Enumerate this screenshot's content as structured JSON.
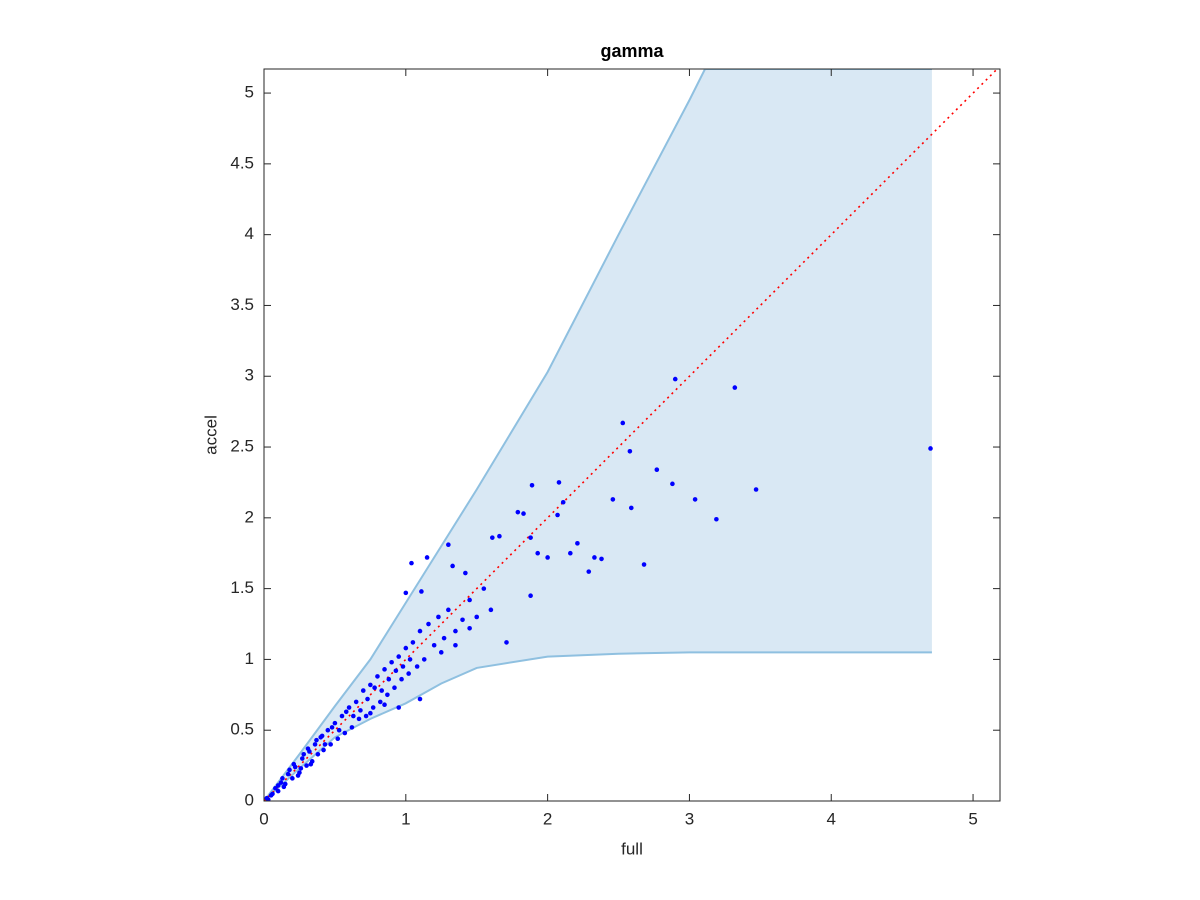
{
  "chart_data": {
    "type": "scatter",
    "title": "gamma",
    "x_label": "full",
    "y_label": "accel",
    "xlim": [
      0,
      5.19
    ],
    "ylim": [
      0,
      5.17
    ],
    "xticks": [
      0,
      1,
      2,
      3,
      4,
      5
    ],
    "yticks": [
      0,
      0.5,
      1,
      1.5,
      2,
      2.5,
      3,
      3.5,
      4,
      4.5,
      5
    ],
    "band": {
      "fill": "#d9e8f4",
      "edge": "#8fc0e0",
      "x": [
        0,
        0.25,
        0.5,
        0.75,
        1,
        1.25,
        1.5,
        2,
        2.5,
        3,
        3.11,
        4.71
      ],
      "upper": [
        0,
        0.33,
        0.67,
        1.0,
        1.4,
        1.8,
        2.2,
        3.03,
        4.0,
        4.95,
        5.17,
        5.17
      ],
      "lower": [
        0,
        0.23,
        0.45,
        0.58,
        0.69,
        0.83,
        0.94,
        1.02,
        1.04,
        1.05,
        1.05,
        1.05
      ]
    },
    "reference_line": {
      "color": "#ff0000",
      "x": [
        0,
        5.17
      ],
      "y": [
        0,
        5.17
      ]
    },
    "points": {
      "color": "#0000ff",
      "x": [
        4.7,
        3.32,
        2.9,
        3.47,
        3.19,
        3.04,
        2.88,
        2.77,
        2.53,
        2.58,
        2.59,
        2.68,
        2.46,
        2.33,
        2.29,
        2.38,
        2.21,
        2.16,
        2.11,
        2.08,
        2.07,
        1.89,
        1.79,
        1.83,
        1.88,
        1.93,
        1.88,
        2.0,
        1.71,
        1.61,
        1.66,
        1.04,
        1.15,
        1.3,
        1.33,
        1.42,
        1.0,
        1.11,
        0.02,
        0.05,
        0.08,
        0.1,
        0.12,
        0.15,
        0.17,
        0.2,
        0.22,
        0.25,
        0.27,
        0.3,
        0.32,
        0.34,
        0.36,
        0.38,
        0.4,
        0.42,
        0.45,
        0.47,
        0.5,
        0.52,
        0.55,
        0.57,
        0.6,
        0.62,
        0.65,
        0.67,
        0.7,
        0.72,
        0.75,
        0.77,
        0.8,
        0.82,
        0.85,
        0.87,
        0.9,
        0.92,
        0.95,
        0.97,
        1.0,
        1.02,
        1.05,
        1.08,
        1.1,
        1.13,
        1.16,
        1.2,
        1.23,
        1.27,
        1.3,
        1.35,
        1.4,
        1.45,
        1.5,
        1.55,
        1.6,
        0.1,
        0.14,
        0.18,
        0.24,
        0.28,
        0.33,
        0.37,
        0.43,
        0.48,
        0.53,
        0.58,
        0.63,
        0.68,
        0.73,
        0.78,
        0.83,
        0.88,
        0.93,
        0.98,
        1.03,
        0.75,
        0.85,
        0.95,
        1.1,
        1.25,
        1.35,
        1.45,
        0.06,
        0.03,
        0.13,
        0.21,
        0.26,
        0.31,
        0.41
      ],
      "y": [
        2.49,
        2.92,
        2.98,
        2.2,
        1.99,
        2.13,
        2.24,
        2.34,
        2.67,
        2.47,
        2.07,
        1.67,
        2.13,
        1.72,
        1.62,
        1.71,
        1.82,
        1.75,
        2.11,
        2.25,
        2.02,
        2.23,
        2.04,
        2.03,
        1.86,
        1.75,
        1.45,
        1.72,
        1.12,
        1.86,
        1.87,
        1.68,
        1.72,
        1.81,
        1.66,
        1.61,
        1.47,
        1.48,
        0.02,
        0.04,
        0.09,
        0.07,
        0.13,
        0.12,
        0.19,
        0.16,
        0.24,
        0.2,
        0.3,
        0.25,
        0.35,
        0.28,
        0.4,
        0.33,
        0.45,
        0.36,
        0.5,
        0.4,
        0.55,
        0.44,
        0.6,
        0.48,
        0.66,
        0.52,
        0.7,
        0.58,
        0.78,
        0.6,
        0.82,
        0.66,
        0.88,
        0.7,
        0.93,
        0.75,
        0.98,
        0.8,
        1.02,
        0.86,
        1.08,
        0.9,
        1.12,
        0.95,
        1.2,
        1.0,
        1.25,
        1.1,
        1.3,
        1.15,
        1.35,
        1.2,
        1.28,
        1.42,
        1.3,
        1.5,
        1.35,
        0.11,
        0.1,
        0.22,
        0.18,
        0.33,
        0.26,
        0.43,
        0.4,
        0.52,
        0.5,
        0.63,
        0.6,
        0.64,
        0.72,
        0.8,
        0.78,
        0.86,
        0.92,
        0.95,
        1.0,
        0.62,
        0.68,
        0.66,
        0.72,
        1.05,
        1.1,
        1.22,
        0.05,
        0.01,
        0.16,
        0.26,
        0.23,
        0.37,
        0.46
      ]
    }
  }
}
